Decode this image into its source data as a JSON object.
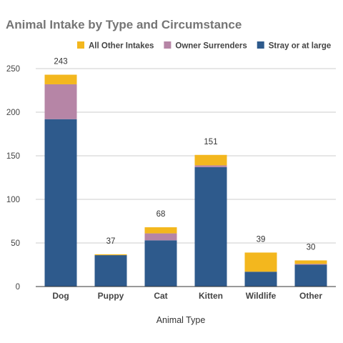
{
  "chart_data": {
    "type": "bar",
    "stacked": true,
    "title": "Animal Intake by Type and Circumstance",
    "xlabel": "Animal Type",
    "ylabel": "",
    "ylim": [
      0,
      250
    ],
    "yticks": [
      0,
      50,
      100,
      150,
      200,
      250
    ],
    "grid": true,
    "legend_position": "top",
    "categories": [
      "Dog",
      "Puppy",
      "Cat",
      "Kitten",
      "Wildlife",
      "Other"
    ],
    "totals": [
      243,
      37,
      68,
      151,
      39,
      30
    ],
    "series": [
      {
        "name": "Stray or at large",
        "color": "#2e5a8c",
        "values": [
          192,
          36,
          53,
          137,
          17,
          25
        ]
      },
      {
        "name": "Owner Surrenders",
        "color": "#b685a6",
        "values": [
          40,
          0,
          8,
          2,
          0,
          1
        ]
      },
      {
        "name": "All Other Intakes",
        "color": "#f3b71e",
        "values": [
          11,
          1,
          7,
          12,
          22,
          4
        ]
      }
    ],
    "legend_order": [
      "All Other Intakes",
      "Owner Surrenders",
      "Stray or at large"
    ]
  }
}
